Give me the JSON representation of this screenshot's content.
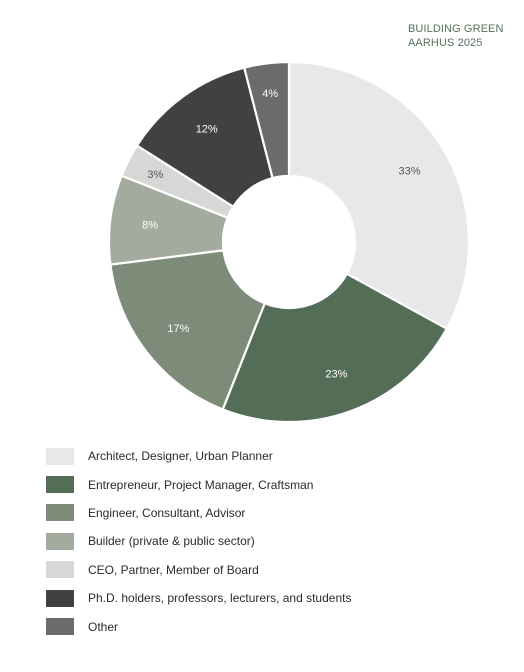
{
  "brand": {
    "line1": "BUILDING GREEN",
    "line2": "AARHUS 2025"
  },
  "chart_data": {
    "type": "pie",
    "donut": true,
    "categories": [
      "Architect, Designer, Urban Planner",
      "Entrepreneur, Project Manager, Craftsman",
      "Engineer, Consultant, Advisor",
      "Builder (private & public sector)",
      "CEO, Partner, Member of Board",
      "Ph.D. holders, professors, lecturers, and students",
      "Other"
    ],
    "values": [
      33,
      23,
      17,
      8,
      3,
      12,
      4
    ],
    "labels": [
      "33%",
      "23%",
      "17%",
      "8%",
      "3%",
      "12%",
      "4%"
    ],
    "colors": [
      "#e8e8e8",
      "#536d56",
      "#7c8c79",
      "#a3ab9f",
      "#d7d7d5",
      "#414141",
      "#6b6b6b"
    ],
    "label_colors": [
      "#555555",
      "#ffffff",
      "#ffffff",
      "#ffffff",
      "#555555",
      "#ffffff",
      "#ffffff"
    ],
    "legend_position": "bottom-left"
  }
}
